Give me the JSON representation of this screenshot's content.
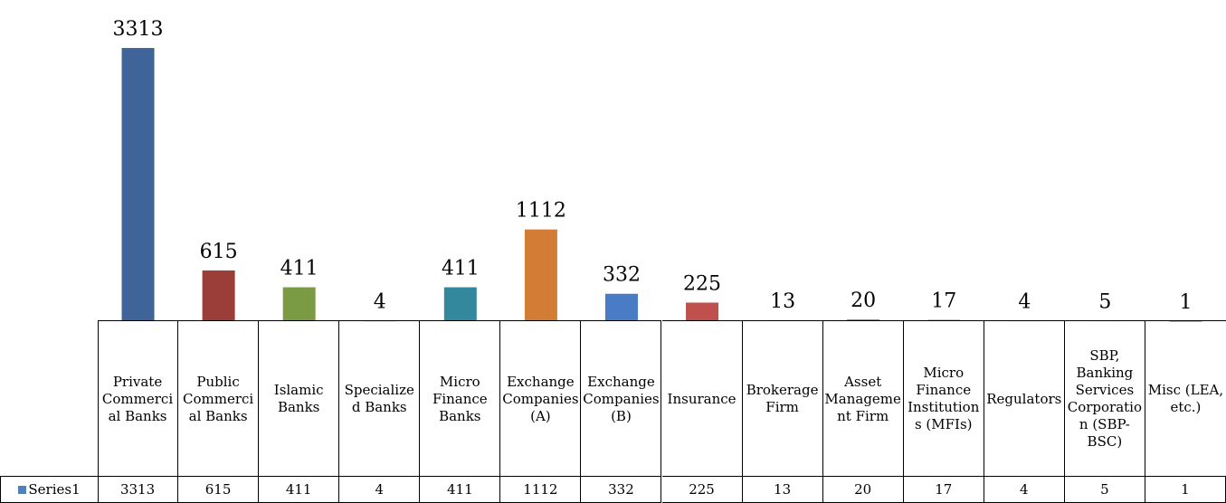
{
  "chart_data": {
    "type": "bar",
    "categories": [
      "Private Commercial Banks",
      "Public Commercial Banks",
      "Islamic Banks",
      "Specialized Banks",
      "Micro Finance Banks",
      "Exchange Companies (A)",
      "Exchange Companies (B)",
      "Insurance",
      "Brokerage Firm",
      "Asset Management Firm",
      "Micro Finance Institutions (MFIs)",
      "Regulators",
      "SBP, Banking Services Corporation (SBP-BSC)",
      "Misc (LEA, etc.)"
    ],
    "series": [
      {
        "name": "Series1",
        "color": "#4f81bd",
        "colors": [
          "#3e6499",
          "#9b3e3a",
          "#7a9a44",
          "#6a5288",
          "#34889d",
          "#d37c35",
          "#4a7cc5",
          "#c0504d",
          "#9bbb59",
          "#8064a2",
          "#4bacc6",
          "#f79646",
          "#2c4d75",
          "#772c2a"
        ],
        "values": [
          3313,
          615,
          411,
          4,
          411,
          1112,
          332,
          225,
          13,
          20,
          17,
          4,
          5,
          1
        ]
      }
    ],
    "ylim": [
      0,
      3500
    ]
  }
}
